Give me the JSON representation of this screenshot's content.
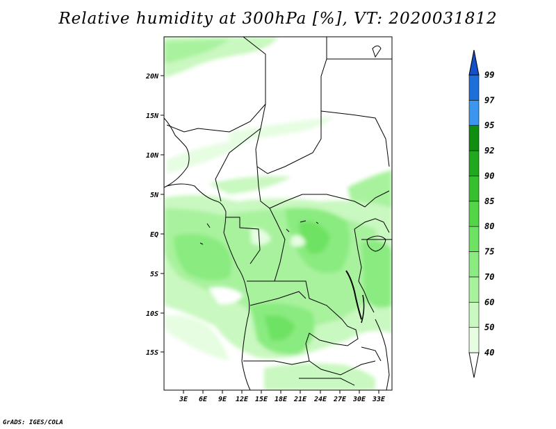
{
  "title": "Relative humidity at 300hPa [%], VT: 2020031812",
  "credit": "GrADS: IGES/COLA",
  "map": {
    "lat_ticks": [
      "20N",
      "15N",
      "10N",
      "5N",
      "EQ",
      "5S",
      "10S",
      "15S"
    ],
    "lon_ticks": [
      "3E",
      "6E",
      "9E",
      "12E",
      "15E",
      "18E",
      "21E",
      "24E",
      "27E",
      "30E",
      "33E"
    ]
  },
  "colorbar": {
    "levels": [
      "40",
      "50",
      "60",
      "70",
      "75",
      "80",
      "85",
      "90",
      "92",
      "95",
      "97",
      "99"
    ],
    "colors": [
      "#ffffff",
      "#e6fde1",
      "#c9f8c0",
      "#a8f29e",
      "#8aeb80",
      "#6ee262",
      "#52d546",
      "#36c030",
      "#20a81e",
      "#108e10",
      "#3c96f0",
      "#1e6edc",
      "#1450c8"
    ]
  },
  "chart_data": {
    "type": "heatmap",
    "title": "Relative humidity at 300hPa [%], VT: 2020031812",
    "lat_range": [
      "19S",
      "24N"
    ],
    "lon_range": [
      "0E",
      "35E"
    ],
    "contour_levels": [
      40,
      50,
      60,
      70,
      75,
      80,
      85,
      90,
      92,
      95,
      97,
      99
    ],
    "units": "%"
  }
}
